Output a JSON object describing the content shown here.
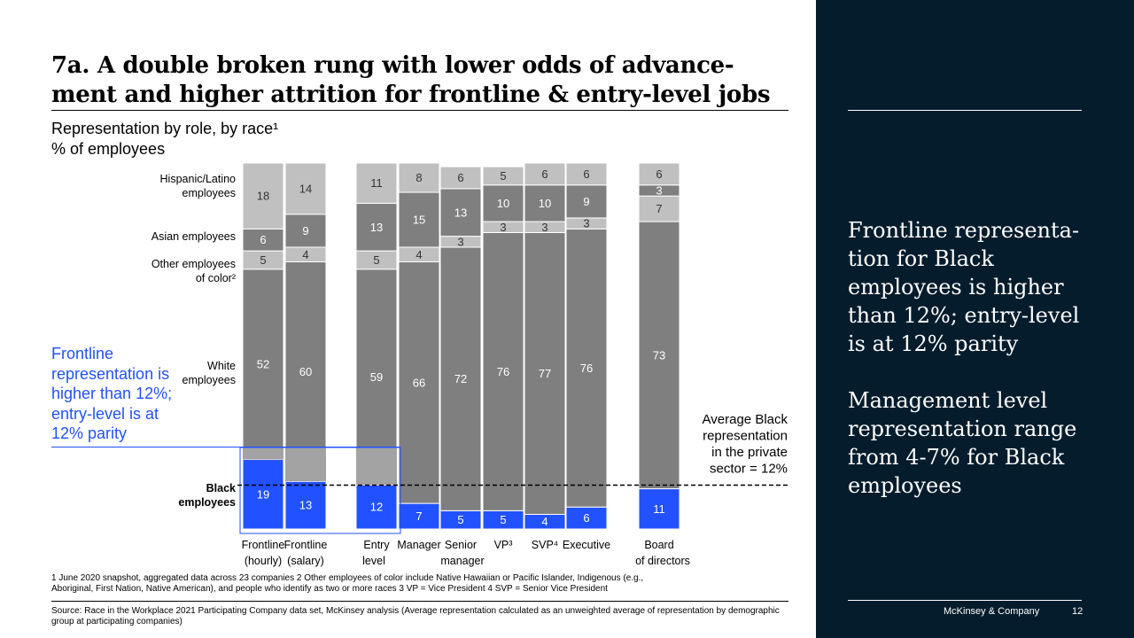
{
  "title": "7a. A double broken rung with lower odds of advance­ment and higher attrition for frontline & entry-level jobs",
  "subtitle": {
    "line1": "Representation by role, by race¹",
    "line2": "% of employees"
  },
  "callout": "Frontline representation is higher than 12%; entry-level is at 12% parity",
  "chart_data": {
    "type": "bar",
    "stacked": true,
    "unit": "% of employees",
    "ylim": [
      0,
      100
    ],
    "categories": [
      {
        "line1": "Frontline",
        "line2": "(hourly)"
      },
      {
        "line1": "Frontline",
        "line2": "(salary)"
      },
      {
        "line1": "Entry",
        "line2": "level"
      },
      {
        "line1": "Manager",
        "line2": ""
      },
      {
        "line1": "Senior",
        "line2": "manager"
      },
      {
        "line1": "VP³",
        "line2": ""
      },
      {
        "line1": "SVP⁴",
        "line2": ""
      },
      {
        "line1": "Executive",
        "line2": ""
      },
      {
        "line1": "Board",
        "line2": "of directors"
      }
    ],
    "series": [
      {
        "name": "Black employees",
        "values": [
          19,
          13,
          12,
          7,
          5,
          5,
          4,
          6,
          11
        ],
        "color": "#2251ff"
      },
      {
        "name": "White employees",
        "values": [
          52,
          60,
          59,
          66,
          72,
          76,
          77,
          76,
          73
        ],
        "color": "#7f7f7f"
      },
      {
        "name": "Other employees of color²",
        "values": [
          5,
          4,
          5,
          4,
          3,
          3,
          3,
          3,
          7
        ],
        "color": "#c0c0c0"
      },
      {
        "name": "Asian employees",
        "values": [
          6,
          9,
          13,
          15,
          13,
          10,
          10,
          9,
          3
        ],
        "color": "#7f7f7f"
      },
      {
        "name": "Hispanic/Latino employees",
        "values": [
          18,
          14,
          11,
          8,
          6,
          5,
          6,
          6,
          6
        ],
        "color": "#c0c0c0"
      }
    ],
    "series_labels": {
      "black": {
        "line1": "Black",
        "line2": "employees"
      },
      "white": {
        "line1": "White",
        "line2": "employees"
      },
      "other": {
        "line1": "Other employees",
        "line2": "of color²"
      },
      "asian": {
        "line1": "Asian employees",
        "line2": ""
      },
      "hispanic": {
        "line1": "Hispanic/Latino",
        "line2": "employees"
      }
    },
    "reference_line": {
      "value": 12,
      "label": [
        "Average Black",
        "representation",
        "in the private",
        "sector = 12%"
      ]
    },
    "highlight_color": "#2251ff",
    "highlight_shade_color": "#a3a3a3"
  },
  "footnotes": {
    "line1": "1  June 2020 snapshot, aggregated data across 23 companies    2 Other employees of color include Native Hawaiian or Pacific Islander, Indigenous (e.g.,",
    "line2": "Aboriginal, First Nation, Native American), and people who identify as two or more races   3  VP = Vice President    4  SVP = Senior Vice President"
  },
  "source": "Source: Race in the Workplace 2021 Participating Company data set, McKinsey analysis (Average representation calculated as an unweighted average of representation by demographic group at participating companies)",
  "panel": {
    "paragraph1": "Frontline representa­tion for Black employees is higher than 12%; entry-level is at 12% parity",
    "paragraph2": "Management level representation range from 4-7% for Black employees",
    "brand": "McKinsey & Company",
    "page_number": "12"
  }
}
